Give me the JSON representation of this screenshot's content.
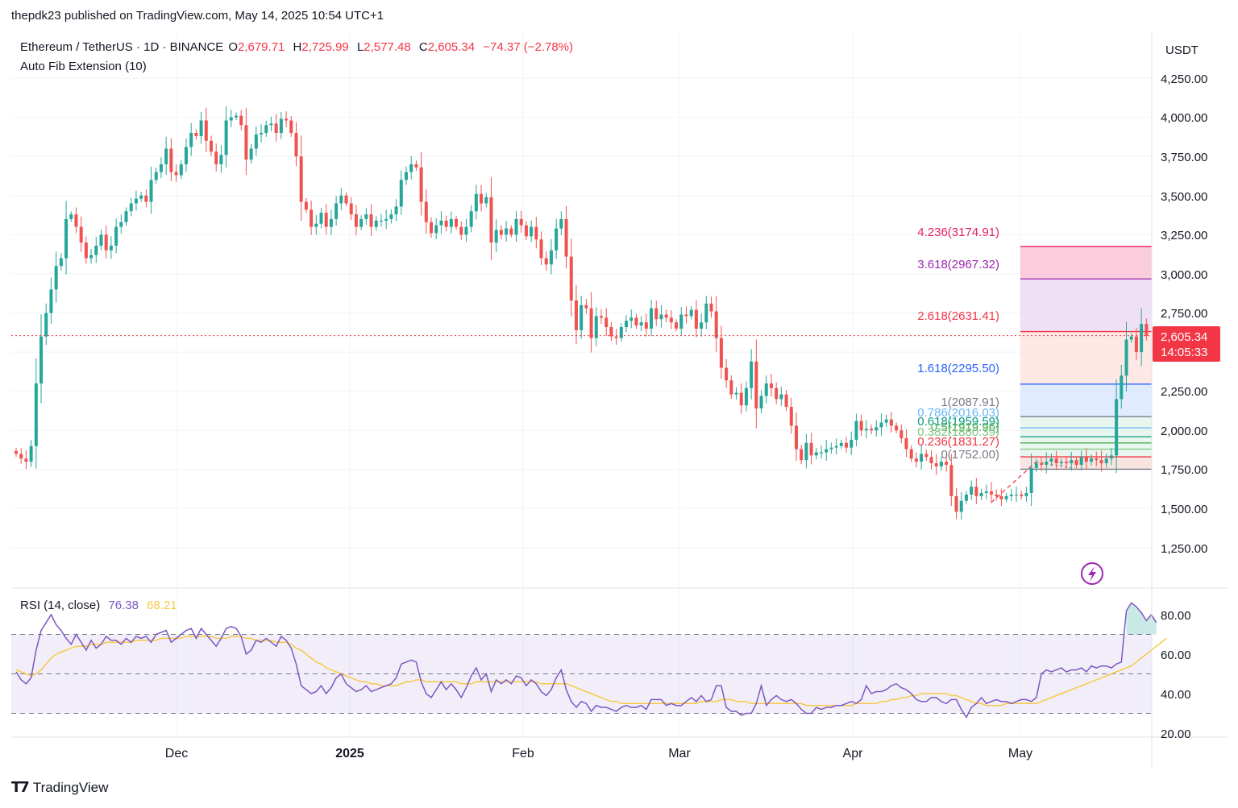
{
  "publisher_line": "thepdk23 published on TradingView.com, May 14, 2025 10:54 UTC+1",
  "legend": {
    "symbol": "Ethereum / TetherUS · 1D · BINANCE",
    "o_label": "O",
    "o": "2,679.71",
    "h_label": "H",
    "h": "2,725.99",
    "l_label": "L",
    "l": "2,577.48",
    "c_label": "C",
    "c": "2,605.34",
    "change": "−74.37 (−2.78%)",
    "indicator": "Auto Fib Extension (10)"
  },
  "rsi_legend": {
    "label": "RSI (14, close)",
    "value": "76.38",
    "ma": "68.21"
  },
  "price_axis": {
    "currency": "USDT",
    "ticks": [
      "4,250.00",
      "4,000.00",
      "3,750.00",
      "3,500.00",
      "3,250.00",
      "3,000.00",
      "2,750.00",
      "2,250.00",
      "2,000.00",
      "1,750.00",
      "1,500.00",
      "1,250.00"
    ],
    "last_price": "2,605.34",
    "countdown": "14:05:33"
  },
  "rsi_axis": {
    "ticks": [
      "80.00",
      "60.00",
      "40.00",
      "20.00"
    ]
  },
  "time_axis": [
    "Dec",
    "2025",
    "Feb",
    "Mar",
    "Apr",
    "May"
  ],
  "fib_labels": [
    "4.236(3174.91)",
    "3.618(2967.32)",
    "2.618(2631.41)",
    "1.618(2295.50)",
    "1(2087.91)",
    "0.786(2016.03)",
    "0.618(1959.59)",
    "0.5(1919.96)",
    "0.382(1880.39)",
    "0.236(1831.27)",
    "0(1752.00)"
  ],
  "footer": {
    "brand": "TradingView"
  },
  "colors": {
    "up": "#26a69a",
    "down": "#ef5350",
    "rsi": "#7e57c2",
    "rsi_ma": "#f7c948"
  },
  "chart_data": [
    {
      "type": "candlestick",
      "title": "Ethereum / TetherUS · 1D · BINANCE",
      "ylabel": "USDT",
      "ylim": [
        1050,
        4420
      ],
      "x_ticks": [
        "Dec",
        "2025",
        "Feb",
        "Mar",
        "Apr",
        "May"
      ],
      "last_close": 2605.34,
      "closes": [
        1850,
        1820,
        1800,
        1900,
        2300,
        2600,
        2750,
        2900,
        3050,
        3100,
        3350,
        3380,
        3300,
        3200,
        3100,
        3120,
        3180,
        3250,
        3150,
        3180,
        3300,
        3330,
        3400,
        3450,
        3480,
        3500,
        3460,
        3600,
        3650,
        3700,
        3800,
        3650,
        3630,
        3700,
        3810,
        3900,
        3880,
        3980,
        3850,
        3780,
        3700,
        3760,
        3980,
        4000,
        4010,
        3950,
        3730,
        3800,
        3890,
        3900,
        3950,
        3960,
        3900,
        3990,
        3980,
        3900,
        3750,
        3460,
        3410,
        3300,
        3320,
        3390,
        3300,
        3350,
        3450,
        3500,
        3450,
        3380,
        3300,
        3350,
        3380,
        3300,
        3340,
        3340,
        3350,
        3380,
        3430,
        3600,
        3650,
        3700,
        3680,
        3460,
        3330,
        3260,
        3310,
        3340,
        3300,
        3350,
        3300,
        3250,
        3300,
        3400,
        3510,
        3450,
        3490,
        3200,
        3280,
        3250,
        3290,
        3250,
        3350,
        3310,
        3240,
        3300,
        3220,
        3100,
        3060,
        3150,
        3290,
        3350,
        3110,
        2830,
        2640,
        2800,
        2780,
        2590,
        2730,
        2720,
        2660,
        2600,
        2590,
        2660,
        2700,
        2720,
        2670,
        2690,
        2650,
        2780,
        2710,
        2740,
        2720,
        2690,
        2650,
        2740,
        2730,
        2770,
        2650,
        2690,
        2810,
        2760,
        2590,
        2400,
        2320,
        2230,
        2240,
        2160,
        2270,
        2440,
        2140,
        2220,
        2300,
        2270,
        2200,
        2230,
        2150,
        2030,
        1880,
        1810,
        1920,
        1840,
        1860,
        1860,
        1880,
        1890,
        1900,
        1920,
        1890,
        1940,
        2060,
        2000,
        2010,
        2000,
        2020,
        2050,
        2070,
        2030,
        2000,
        1950,
        1880,
        1820,
        1800,
        1850,
        1830,
        1790,
        1770,
        1800,
        1780,
        1580,
        1480,
        1550,
        1590,
        1640,
        1580,
        1600,
        1610,
        1590,
        1580,
        1560,
        1580,
        1590,
        1590,
        1580,
        1600,
        1760,
        1790,
        1780,
        1800,
        1820,
        1790,
        1800,
        1790,
        1810,
        1780,
        1830,
        1800,
        1820,
        1810,
        1790,
        1820,
        1840,
        2200,
        2350,
        2580,
        2600,
        2500,
        2680,
        2605
      ]
    },
    {
      "type": "line",
      "title": "RSI (14, close)",
      "ylim": [
        18,
        92
      ],
      "y_ticks": [
        80,
        60,
        40,
        20
      ],
      "bands": [
        30,
        50,
        70
      ],
      "series": [
        {
          "name": "RSI",
          "last": 76.38,
          "values": [
            51,
            47,
            45,
            48,
            62,
            72,
            76,
            80,
            75,
            72,
            68,
            65,
            70,
            66,
            62,
            67,
            63,
            65,
            69,
            67,
            67,
            65,
            68,
            66,
            69,
            68,
            69,
            66,
            70,
            71,
            72,
            66,
            68,
            70,
            72,
            73,
            68,
            73,
            70,
            67,
            64,
            68,
            73,
            74,
            73,
            69,
            60,
            62,
            67,
            66,
            68,
            66,
            64,
            69,
            67,
            63,
            55,
            44,
            42,
            40,
            41,
            44,
            40,
            43,
            48,
            50,
            45,
            43,
            41,
            42,
            44,
            41,
            42,
            43,
            44,
            45,
            48,
            55,
            56,
            57,
            56,
            46,
            40,
            38,
            42,
            46,
            42,
            45,
            42,
            38,
            43,
            49,
            53,
            47,
            50,
            41,
            47,
            45,
            47,
            45,
            49,
            48,
            44,
            47,
            45,
            41,
            39,
            42,
            48,
            52,
            42,
            36,
            33,
            36,
            35,
            31,
            34,
            33,
            33,
            32,
            31,
            33,
            34,
            33,
            33,
            34,
            32,
            37,
            37,
            37,
            34,
            35,
            34,
            34,
            36,
            38,
            36,
            39,
            36,
            37,
            44,
            44,
            33,
            31,
            31,
            29,
            30,
            30,
            35,
            44,
            34,
            37,
            39,
            37,
            36,
            37,
            35,
            32,
            30,
            30,
            33,
            32,
            33,
            33,
            34,
            34,
            35,
            36,
            35,
            37,
            44,
            40,
            41,
            41,
            42,
            44,
            45,
            43,
            42,
            40,
            37,
            36,
            36,
            38,
            38,
            36,
            35,
            37,
            37,
            32,
            28,
            33,
            35,
            38,
            35,
            36,
            37,
            36,
            36,
            35,
            36,
            37,
            37,
            36,
            38,
            50,
            52,
            51,
            52,
            53,
            51,
            52,
            52,
            53,
            51,
            54,
            53,
            54,
            54,
            53,
            55,
            56,
            82,
            86,
            84,
            81,
            77,
            80,
            76
          ]
        },
        {
          "name": "MA",
          "last": 68.21,
          "values": [
            52,
            51,
            50,
            49,
            50,
            52,
            55,
            58,
            60,
            61,
            62,
            63,
            64,
            64,
            64,
            65,
            65,
            65,
            66,
            66,
            66,
            66,
            66,
            66,
            67,
            67,
            67,
            67,
            67,
            68,
            68,
            68,
            68,
            68,
            69,
            69,
            69,
            69,
            69,
            69,
            68,
            68,
            68,
            69,
            69,
            69,
            68,
            68,
            67,
            67,
            67,
            67,
            66,
            66,
            66,
            65,
            63,
            62,
            60,
            58,
            56,
            55,
            53,
            52,
            51,
            50,
            49,
            48,
            47,
            46,
            46,
            45,
            45,
            44,
            44,
            44,
            44,
            45,
            46,
            46,
            47,
            47,
            46,
            46,
            46,
            46,
            46,
            46,
            46,
            45,
            45,
            45,
            46,
            46,
            46,
            46,
            46,
            46,
            46,
            46,
            46,
            46,
            46,
            46,
            46,
            45,
            45,
            45,
            45,
            45,
            45,
            44,
            43,
            42,
            41,
            40,
            39,
            38,
            37,
            36,
            36,
            35,
            35,
            35,
            35,
            35,
            35,
            35,
            35,
            35,
            35,
            35,
            35,
            35,
            35,
            35,
            35,
            36,
            36,
            36,
            36,
            37,
            37,
            37,
            36,
            36,
            36,
            35,
            35,
            35,
            35,
            35,
            35,
            35,
            35,
            35,
            35,
            35,
            34,
            34,
            34,
            34,
            34,
            34,
            34,
            34,
            34,
            34,
            35,
            35,
            35,
            35,
            35,
            36,
            36,
            37,
            37,
            38,
            38,
            39,
            39,
            40,
            40,
            40,
            40,
            40,
            40,
            39,
            39,
            38,
            37,
            36,
            35,
            35,
            34,
            34,
            34,
            34,
            35,
            35,
            35,
            35,
            35,
            35,
            35,
            36,
            37,
            38,
            39,
            40,
            41,
            42,
            43,
            44,
            45,
            46,
            47,
            48,
            49,
            50,
            51,
            52,
            53,
            54,
            56,
            58,
            60,
            62,
            64,
            66,
            68
          ]
        }
      ]
    }
  ]
}
